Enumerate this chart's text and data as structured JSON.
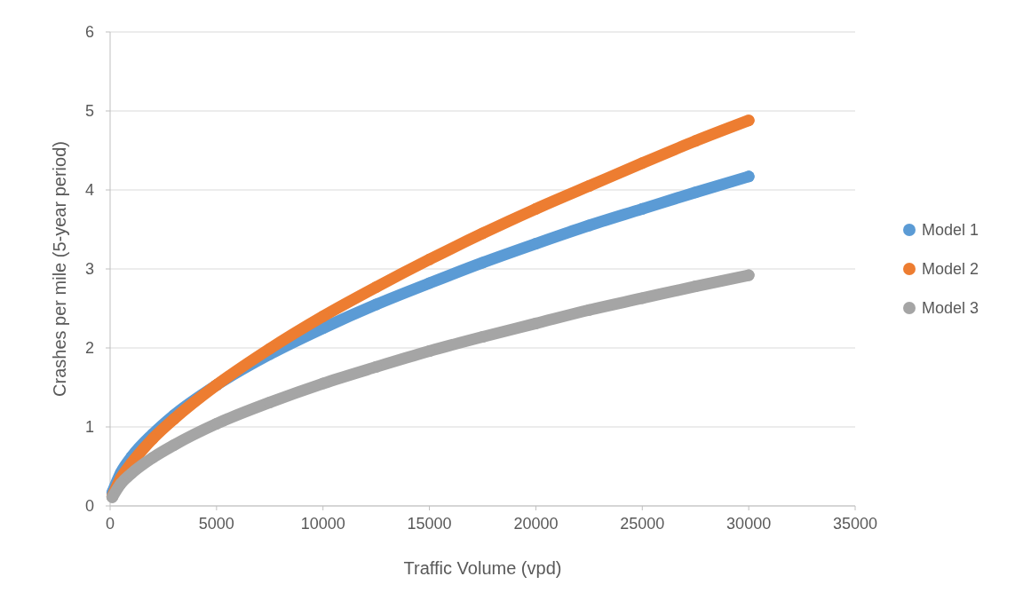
{
  "chart_data": {
    "type": "line",
    "xlabel": "Traffic Volume (vpd)",
    "ylabel": "Crashes per mile (5-year period)",
    "x": [
      100,
      500,
      1000,
      2000,
      3000,
      5000,
      7500,
      10000,
      12500,
      15000,
      17500,
      20000,
      22500,
      25000,
      27500,
      30000
    ],
    "series": [
      {
        "name": "Model 1",
        "color": "#5b9bd5",
        "values": [
          0.17,
          0.42,
          0.62,
          0.91,
          1.15,
          1.53,
          1.92,
          2.25,
          2.55,
          2.82,
          3.08,
          3.32,
          3.55,
          3.76,
          3.97,
          4.17
        ]
      },
      {
        "name": "Model 2",
        "color": "#ed7d31",
        "values": [
          0.12,
          0.35,
          0.54,
          0.85,
          1.1,
          1.53,
          1.99,
          2.4,
          2.77,
          3.12,
          3.45,
          3.76,
          4.05,
          4.34,
          4.62,
          4.88
        ]
      },
      {
        "name": "Model 3",
        "color": "#a5a5a5",
        "values": [
          0.11,
          0.28,
          0.41,
          0.61,
          0.77,
          1.04,
          1.31,
          1.55,
          1.76,
          1.96,
          2.14,
          2.31,
          2.48,
          2.63,
          2.78,
          2.92
        ]
      }
    ],
    "xlim": [
      0,
      35000
    ],
    "xticks": [
      0,
      5000,
      10000,
      15000,
      20000,
      25000,
      30000,
      35000
    ],
    "ylim": [
      0,
      6
    ],
    "yticks": [
      0,
      1,
      2,
      3,
      4,
      5,
      6
    ],
    "grid": "y",
    "legend": "right",
    "marker": "circle",
    "line_style": "solid"
  }
}
